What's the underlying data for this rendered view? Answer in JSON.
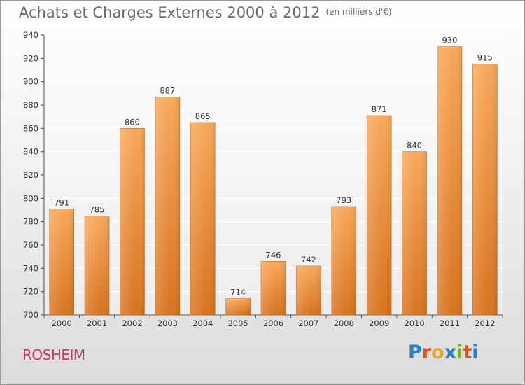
{
  "title": "Achats et Charges Externes 2000 à 2012",
  "subtitle": "(en milliers d'€)",
  "town": "ROSHEIM",
  "logo": {
    "letters": [
      "P",
      "r",
      "o",
      "x",
      "i",
      "t",
      "i"
    ],
    "colors": [
      "#2a7fc9",
      "#e94e1b",
      "#f4a020",
      "#2a7fc9",
      "#7ab51d",
      "#e94e1b",
      "#2a7fc9"
    ]
  },
  "chart_data": {
    "type": "bar",
    "categories": [
      "2000",
      "2001",
      "2002",
      "2003",
      "2004",
      "2005",
      "2006",
      "2007",
      "2008",
      "2009",
      "2010",
      "2011",
      "2012"
    ],
    "values": [
      791,
      785,
      860,
      887,
      865,
      714,
      746,
      742,
      793,
      871,
      840,
      930,
      915
    ],
    "title": "Achats et Charges Externes 2000 à 2012",
    "subtitle": "(en milliers d'€)",
    "ylim": [
      700,
      940
    ],
    "yticks": [
      700,
      720,
      740,
      760,
      780,
      800,
      820,
      840,
      860,
      880,
      900,
      920,
      940
    ],
    "grid": true,
    "bar_color": "#f0a050"
  }
}
